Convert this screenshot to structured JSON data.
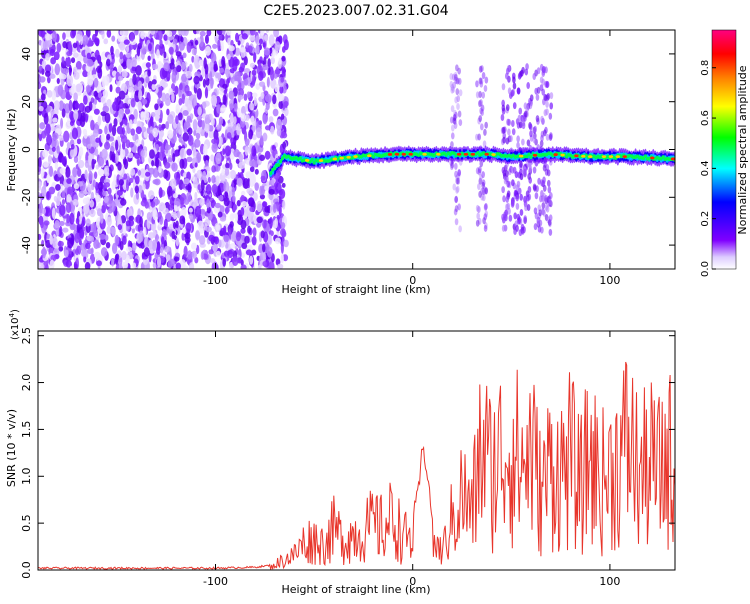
{
  "figure": {
    "title": "C2E5.2023.007.02.31.G04"
  },
  "chart_data": [
    {
      "type": "heatmap",
      "xlabel": "Height of straight line (km)",
      "ylabel": "Frequency (Hz)",
      "xlim": [
        -190,
        133
      ],
      "ylim": [
        -50,
        50
      ],
      "x_ticks": [
        -100,
        0,
        100
      ],
      "x_tick_labels": [
        "-100",
        "0",
        "100"
      ],
      "y_ticks": [
        -40,
        -20,
        0,
        20,
        40
      ],
      "y_tick_labels": [
        "-40",
        "-20",
        "0",
        "20",
        "40"
      ],
      "signal_track": {
        "description": "Bright horizontal band near 0 Hz from about -72 km to 133 km; gaps/disturbances near 20 km, 35 km and 48-70 km",
        "points": [
          [
            -72,
            -10
          ],
          [
            -65,
            -3
          ],
          [
            -50,
            -5
          ],
          [
            -30,
            -3
          ],
          [
            -10,
            -2
          ],
          [
            0,
            -2
          ],
          [
            20,
            -2
          ],
          [
            40,
            -2
          ],
          [
            50,
            -3
          ],
          [
            70,
            -2
          ],
          [
            90,
            -3
          ],
          [
            110,
            -3
          ],
          [
            133,
            -4
          ]
        ]
      },
      "noise_region": [
        -190,
        -72
      ],
      "grid": false
    },
    {
      "type": "colorbar",
      "label": "Normalized spectral amplitude",
      "range": [
        0.0,
        0.95
      ],
      "ticks": [
        0.0,
        0.2,
        0.4,
        0.6,
        0.8
      ],
      "tick_labels": [
        "0.0",
        "0.2",
        "0.4",
        "0.6",
        "0.8"
      ],
      "colormap": [
        "#ffffff",
        "#8000ff",
        "#0000ff",
        "#00ffff",
        "#00ff00",
        "#ffff00",
        "#ff8000",
        "#ff0000",
        "#ff0080"
      ]
    },
    {
      "type": "line",
      "xlabel": "Height of straight line (km)",
      "ylabel": "SNR (10 * v/v)",
      "ylabel_multiplier": "(x10",
      "ylabel_multiplier_exp": "4",
      "ylabel_multiplier_close": ")",
      "xlim": [
        -190,
        133
      ],
      "ylim": [
        0,
        2.55
      ],
      "x_ticks": [
        -100,
        0,
        100
      ],
      "x_tick_labels": [
        "-100",
        "0",
        "100"
      ],
      "y_ticks": [
        0.0,
        0.5,
        1.0,
        1.5,
        2.0,
        2.5
      ],
      "y_tick_labels": [
        "0.0",
        "0.5",
        "1.0",
        "1.5",
        "2.0",
        "2.5"
      ],
      "color": "#e8352b",
      "series": [
        {
          "x": [
            -190,
            -160,
            -130,
            -100,
            -80,
            -72,
            -68,
            -60,
            -55,
            -50,
            -45,
            -40,
            -35,
            -30,
            -25,
            -20,
            -15,
            -10,
            -5,
            0,
            3,
            5,
            7,
            10,
            15,
            20,
            25,
            30,
            35,
            40,
            45,
            50,
            55,
            60,
            65,
            70,
            75,
            80,
            85,
            90,
            95,
            100,
            105,
            110,
            115,
            120,
            125,
            130,
            133
          ],
          "values": [
            0.02,
            0.02,
            0.02,
            0.02,
            0.03,
            0.05,
            0.15,
            0.3,
            0.55,
            0.6,
            0.5,
            0.8,
            0.6,
            0.7,
            0.75,
            0.9,
            0.8,
            1.05,
            0.65,
            0.6,
            0.9,
            1.35,
            1.2,
            0.55,
            0.35,
            1.0,
            1.5,
            1.1,
            2.5,
            1.9,
            2.3,
            2.5,
            2.0,
            2.4,
            1.5,
            2.1,
            1.9,
            2.2,
            1.6,
            2.3,
            1.7,
            1.9,
            2.2,
            2.55,
            1.8,
            2.1,
            1.9,
            2.25,
            1.7
          ]
        }
      ],
      "grid": false
    }
  ]
}
